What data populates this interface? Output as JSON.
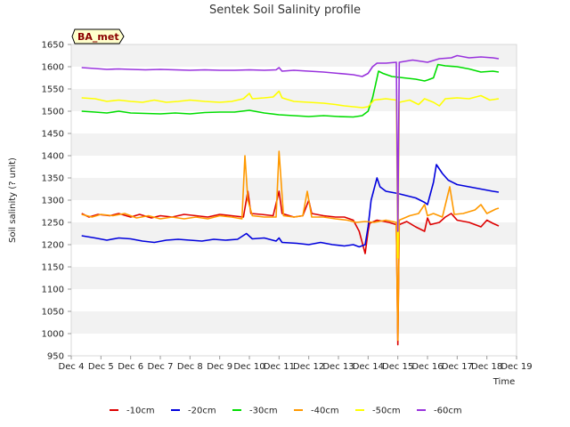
{
  "chart_data": {
    "type": "line",
    "title": "Sentek Soil Salinity profile",
    "xlabel": "Time",
    "ylabel": "Soil salinity (? unit)",
    "badge": "BA_met",
    "ylim": [
      950,
      1650
    ],
    "yticks": [
      950,
      1000,
      1050,
      1100,
      1150,
      1200,
      1250,
      1300,
      1350,
      1400,
      1450,
      1500,
      1550,
      1600,
      1650
    ],
    "xlim": [
      0,
      15
    ],
    "xticks": [
      {
        "x": 0,
        "label": "Dec 4"
      },
      {
        "x": 1,
        "label": "Dec 5"
      },
      {
        "x": 2,
        "label": "Dec 6"
      },
      {
        "x": 3,
        "label": "Dec 7"
      },
      {
        "x": 4,
        "label": "Dec 8"
      },
      {
        "x": 5,
        "label": "Dec 9"
      },
      {
        "x": 6,
        "label": "Dec 10"
      },
      {
        "x": 7,
        "label": "Dec 11"
      },
      {
        "x": 8,
        "label": "Dec 12"
      },
      {
        "x": 9,
        "label": "Dec 13"
      },
      {
        "x": 10,
        "label": "Dec 14"
      },
      {
        "x": 11,
        "label": "Dec 15"
      },
      {
        "x": 12,
        "label": "Dec 16"
      },
      {
        "x": 13,
        "label": "Dec 17"
      },
      {
        "x": 14,
        "label": "Dec 18"
      },
      {
        "x": 15,
        "label": "Dec 19"
      }
    ],
    "grid": "horizontal-bands",
    "legend_position": "bottom",
    "series": [
      {
        "name": "-10cm",
        "color": "#dd0000",
        "points": [
          [
            0.35,
            1270
          ],
          [
            0.6,
            1262
          ],
          [
            0.9,
            1268
          ],
          [
            1.3,
            1265
          ],
          [
            1.6,
            1270
          ],
          [
            2.0,
            1262
          ],
          [
            2.3,
            1268
          ],
          [
            2.7,
            1260
          ],
          [
            3.0,
            1265
          ],
          [
            3.4,
            1262
          ],
          [
            3.8,
            1268
          ],
          [
            4.2,
            1265
          ],
          [
            4.6,
            1262
          ],
          [
            5.0,
            1268
          ],
          [
            5.4,
            1265
          ],
          [
            5.8,
            1262
          ],
          [
            5.95,
            1320
          ],
          [
            6.05,
            1270
          ],
          [
            6.4,
            1268
          ],
          [
            6.8,
            1265
          ],
          [
            7.0,
            1320
          ],
          [
            7.1,
            1270
          ],
          [
            7.5,
            1262
          ],
          [
            7.8,
            1265
          ],
          [
            8.0,
            1300
          ],
          [
            8.1,
            1270
          ],
          [
            8.5,
            1265
          ],
          [
            8.9,
            1262
          ],
          [
            9.2,
            1262
          ],
          [
            9.5,
            1255
          ],
          [
            9.7,
            1230
          ],
          [
            9.9,
            1180
          ],
          [
            10.0,
            1230
          ],
          [
            10.05,
            1248
          ],
          [
            10.3,
            1255
          ],
          [
            10.7,
            1250
          ],
          [
            10.95,
            1245
          ],
          [
            11.0,
            975
          ],
          [
            11.05,
            1245
          ],
          [
            11.3,
            1252
          ],
          [
            11.6,
            1240
          ],
          [
            11.9,
            1230
          ],
          [
            12.0,
            1260
          ],
          [
            12.1,
            1245
          ],
          [
            12.4,
            1250
          ],
          [
            12.6,
            1262
          ],
          [
            12.8,
            1270
          ],
          [
            13.0,
            1255
          ],
          [
            13.4,
            1250
          ],
          [
            13.8,
            1240
          ],
          [
            14.0,
            1255
          ],
          [
            14.2,
            1248
          ],
          [
            14.4,
            1242
          ]
        ]
      },
      {
        "name": "-20cm",
        "color": "#0000dd",
        "points": [
          [
            0.35,
            1220
          ],
          [
            0.8,
            1215
          ],
          [
            1.2,
            1210
          ],
          [
            1.6,
            1215
          ],
          [
            2.0,
            1213
          ],
          [
            2.4,
            1208
          ],
          [
            2.8,
            1205
          ],
          [
            3.2,
            1210
          ],
          [
            3.6,
            1212
          ],
          [
            4.0,
            1210
          ],
          [
            4.4,
            1208
          ],
          [
            4.8,
            1212
          ],
          [
            5.2,
            1210
          ],
          [
            5.6,
            1212
          ],
          [
            5.9,
            1225
          ],
          [
            6.1,
            1213
          ],
          [
            6.5,
            1215
          ],
          [
            6.9,
            1208
          ],
          [
            7.0,
            1215
          ],
          [
            7.1,
            1205
          ],
          [
            7.6,
            1203
          ],
          [
            8.0,
            1200
          ],
          [
            8.4,
            1205
          ],
          [
            8.8,
            1200
          ],
          [
            9.2,
            1197
          ],
          [
            9.5,
            1200
          ],
          [
            9.7,
            1195
          ],
          [
            9.9,
            1200
          ],
          [
            10.0,
            1240
          ],
          [
            10.1,
            1300
          ],
          [
            10.3,
            1350
          ],
          [
            10.4,
            1330
          ],
          [
            10.6,
            1320
          ],
          [
            11.0,
            1315
          ],
          [
            11.3,
            1310
          ],
          [
            11.6,
            1305
          ],
          [
            11.9,
            1295
          ],
          [
            12.0,
            1290
          ],
          [
            12.2,
            1340
          ],
          [
            12.3,
            1380
          ],
          [
            12.5,
            1360
          ],
          [
            12.7,
            1345
          ],
          [
            13.0,
            1335
          ],
          [
            13.4,
            1330
          ],
          [
            13.8,
            1325
          ],
          [
            14.2,
            1320
          ],
          [
            14.4,
            1318
          ]
        ]
      },
      {
        "name": "-30cm",
        "color": "#00dd00",
        "points": [
          [
            0.35,
            1500
          ],
          [
            0.8,
            1498
          ],
          [
            1.2,
            1496
          ],
          [
            1.6,
            1500
          ],
          [
            2.0,
            1496
          ],
          [
            2.5,
            1495
          ],
          [
            3.0,
            1494
          ],
          [
            3.5,
            1496
          ],
          [
            4.0,
            1494
          ],
          [
            4.5,
            1497
          ],
          [
            5.0,
            1498
          ],
          [
            5.5,
            1498
          ],
          [
            6.0,
            1502
          ],
          [
            6.5,
            1496
          ],
          [
            7.0,
            1492
          ],
          [
            7.5,
            1490
          ],
          [
            8.0,
            1488
          ],
          [
            8.5,
            1490
          ],
          [
            9.0,
            1488
          ],
          [
            9.5,
            1487
          ],
          [
            9.8,
            1490
          ],
          [
            10.0,
            1500
          ],
          [
            10.15,
            1530
          ],
          [
            10.25,
            1560
          ],
          [
            10.35,
            1590
          ],
          [
            10.5,
            1585
          ],
          [
            10.8,
            1578
          ],
          [
            11.2,
            1575
          ],
          [
            11.6,
            1572
          ],
          [
            11.9,
            1568
          ],
          [
            12.0,
            1570
          ],
          [
            12.2,
            1575
          ],
          [
            12.35,
            1605
          ],
          [
            12.6,
            1602
          ],
          [
            13.0,
            1600
          ],
          [
            13.4,
            1595
          ],
          [
            13.8,
            1588
          ],
          [
            14.2,
            1590
          ],
          [
            14.4,
            1588
          ]
        ]
      },
      {
        "name": "-40cm",
        "color": "#ff9900",
        "points": [
          [
            0.35,
            1268
          ],
          [
            0.7,
            1262
          ],
          [
            1.0,
            1268
          ],
          [
            1.4,
            1265
          ],
          [
            1.8,
            1270
          ],
          [
            2.2,
            1260
          ],
          [
            2.6,
            1265
          ],
          [
            3.0,
            1258
          ],
          [
            3.4,
            1262
          ],
          [
            3.8,
            1258
          ],
          [
            4.2,
            1262
          ],
          [
            4.6,
            1258
          ],
          [
            5.0,
            1265
          ],
          [
            5.4,
            1262
          ],
          [
            5.75,
            1258
          ],
          [
            5.85,
            1400
          ],
          [
            5.95,
            1300
          ],
          [
            6.1,
            1265
          ],
          [
            6.5,
            1262
          ],
          [
            6.9,
            1262
          ],
          [
            7.0,
            1410
          ],
          [
            7.15,
            1265
          ],
          [
            7.5,
            1262
          ],
          [
            7.8,
            1265
          ],
          [
            7.95,
            1320
          ],
          [
            8.1,
            1262
          ],
          [
            8.5,
            1262
          ],
          [
            8.9,
            1258
          ],
          [
            9.3,
            1255
          ],
          [
            9.6,
            1250
          ],
          [
            9.9,
            1252
          ],
          [
            10.2,
            1250
          ],
          [
            10.6,
            1255
          ],
          [
            10.95,
            1250
          ],
          [
            11.0,
            985
          ],
          [
            11.05,
            1255
          ],
          [
            11.4,
            1265
          ],
          [
            11.7,
            1270
          ],
          [
            11.9,
            1290
          ],
          [
            12.0,
            1265
          ],
          [
            12.2,
            1270
          ],
          [
            12.5,
            1262
          ],
          [
            12.75,
            1330
          ],
          [
            12.9,
            1268
          ],
          [
            13.2,
            1270
          ],
          [
            13.6,
            1278
          ],
          [
            13.8,
            1290
          ],
          [
            14.0,
            1270
          ],
          [
            14.3,
            1280
          ],
          [
            14.4,
            1282
          ]
        ]
      },
      {
        "name": "-50cm",
        "color": "#ffff00",
        "points": [
          [
            0.35,
            1530
          ],
          [
            0.8,
            1528
          ],
          [
            1.2,
            1522
          ],
          [
            1.6,
            1525
          ],
          [
            2.0,
            1522
          ],
          [
            2.4,
            1520
          ],
          [
            2.8,
            1525
          ],
          [
            3.2,
            1520
          ],
          [
            3.6,
            1522
          ],
          [
            4.0,
            1525
          ],
          [
            4.5,
            1522
          ],
          [
            5.0,
            1520
          ],
          [
            5.4,
            1522
          ],
          [
            5.8,
            1528
          ],
          [
            6.0,
            1540
          ],
          [
            6.1,
            1528
          ],
          [
            6.5,
            1530
          ],
          [
            6.8,
            1532
          ],
          [
            7.0,
            1545
          ],
          [
            7.1,
            1530
          ],
          [
            7.5,
            1522
          ],
          [
            8.0,
            1520
          ],
          [
            8.5,
            1518
          ],
          [
            8.9,
            1515
          ],
          [
            9.2,
            1512
          ],
          [
            9.5,
            1510
          ],
          [
            9.8,
            1508
          ],
          [
            10.0,
            1510
          ],
          [
            10.2,
            1525
          ],
          [
            10.6,
            1528
          ],
          [
            10.95,
            1525
          ],
          [
            11.0,
            1170
          ],
          [
            11.05,
            1520
          ],
          [
            11.4,
            1525
          ],
          [
            11.7,
            1515
          ],
          [
            11.9,
            1528
          ],
          [
            12.2,
            1520
          ],
          [
            12.4,
            1512
          ],
          [
            12.6,
            1528
          ],
          [
            13.0,
            1530
          ],
          [
            13.4,
            1528
          ],
          [
            13.8,
            1535
          ],
          [
            14.1,
            1525
          ],
          [
            14.4,
            1528
          ]
        ]
      },
      {
        "name": "-60cm",
        "color": "#9933dd",
        "points": [
          [
            0.35,
            1598
          ],
          [
            0.8,
            1596
          ],
          [
            1.2,
            1594
          ],
          [
            1.6,
            1595
          ],
          [
            2.0,
            1594
          ],
          [
            2.5,
            1593
          ],
          [
            3.0,
            1594
          ],
          [
            3.5,
            1593
          ],
          [
            4.0,
            1592
          ],
          [
            4.5,
            1593
          ],
          [
            5.0,
            1592
          ],
          [
            5.5,
            1592
          ],
          [
            6.0,
            1593
          ],
          [
            6.5,
            1592
          ],
          [
            6.9,
            1593
          ],
          [
            7.0,
            1598
          ],
          [
            7.1,
            1590
          ],
          [
            7.5,
            1592
          ],
          [
            8.0,
            1590
          ],
          [
            8.5,
            1588
          ],
          [
            9.0,
            1585
          ],
          [
            9.5,
            1582
          ],
          [
            9.8,
            1578
          ],
          [
            10.0,
            1585
          ],
          [
            10.15,
            1600
          ],
          [
            10.3,
            1608
          ],
          [
            10.6,
            1608
          ],
          [
            10.95,
            1610
          ],
          [
            11.0,
            1230
          ],
          [
            11.05,
            1610
          ],
          [
            11.5,
            1615
          ],
          [
            12.0,
            1610
          ],
          [
            12.4,
            1618
          ],
          [
            12.8,
            1620
          ],
          [
            13.0,
            1625
          ],
          [
            13.4,
            1620
          ],
          [
            13.8,
            1622
          ],
          [
            14.2,
            1620
          ],
          [
            14.4,
            1618
          ]
        ]
      }
    ]
  }
}
